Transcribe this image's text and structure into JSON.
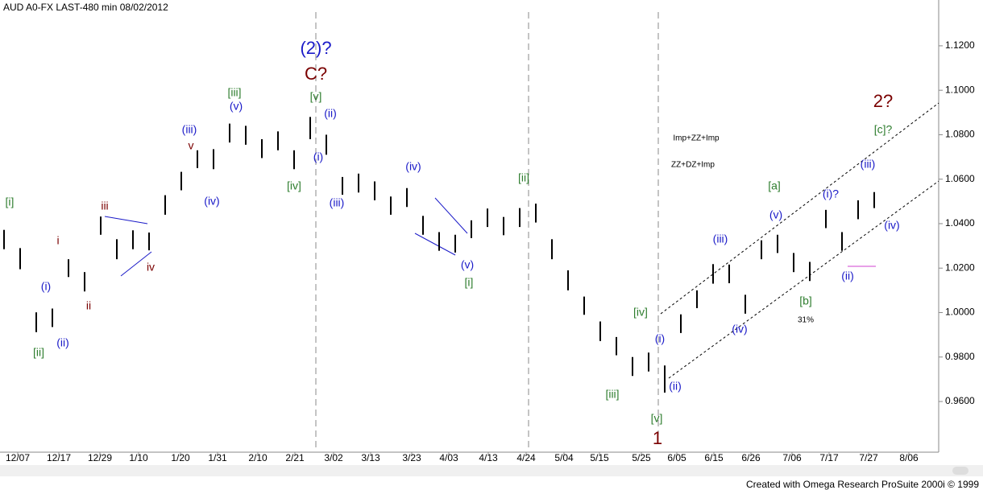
{
  "chart_data": {
    "type": "ohlc",
    "title": "AUD A0-FX LAST-480 min   08/02/2012",
    "footer": "Created with Omega Research ProSuite 2000i © 1999",
    "color": "#000000",
    "high": [
      1.0372,
      1.029,
      1.0001,
      1.0018,
      1.024,
      1.0182,
      1.0432,
      1.033,
      1.037,
      1.036,
      1.0528,
      1.0633,
      1.073,
      1.0735,
      1.085,
      1.084,
      1.078,
      1.0815,
      1.073,
      1.088,
      1.08,
      1.061,
      1.0625,
      1.059,
      1.0522,
      1.056,
      1.0435,
      1.0362,
      1.035,
      1.0415,
      1.0468,
      1.043,
      1.047,
      1.049,
      1.033,
      1.019,
      1.0072,
      0.996,
      0.989,
      0.98,
      0.982,
      0.9762,
      0.9992,
      1.01,
      1.0218,
      1.0216,
      1.008,
      1.0325,
      1.035,
      1.0268,
      1.0228,
      1.0462,
      1.0362,
      1.0505,
      1.0542
    ],
    "low": [
      1.0285,
      1.0195,
      0.9912,
      0.9935,
      1.016,
      1.0095,
      1.035,
      1.024,
      1.0285,
      1.028,
      1.044,
      1.055,
      1.065,
      1.0645,
      1.0765,
      1.0755,
      1.0695,
      1.073,
      1.0645,
      1.078,
      1.071,
      1.053,
      1.054,
      1.0505,
      1.044,
      1.0475,
      1.035,
      1.0278,
      1.027,
      1.0335,
      1.0385,
      1.0348,
      1.0385,
      1.0405,
      1.024,
      1.01,
      0.999,
      0.9872,
      0.9808,
      0.9715,
      0.9735,
      0.964,
      0.9908,
      1.002,
      1.013,
      1.0132,
      0.9995,
      1.024,
      1.0268,
      1.0182,
      1.0142,
      1.038,
      1.0278,
      1.042,
      1.047
    ],
    "xlim": [
      -0.25,
      58
    ],
    "xticks": [
      {
        "value": 0.85,
        "label": "12/07"
      },
      {
        "value": 3.4,
        "label": "12/17"
      },
      {
        "value": 5.95,
        "label": "12/29"
      },
      {
        "value": 8.35,
        "label": "1/10"
      },
      {
        "value": 10.95,
        "label": "1/20"
      },
      {
        "value": 13.25,
        "label": "1/31"
      },
      {
        "value": 15.75,
        "label": "2/10"
      },
      {
        "value": 18.05,
        "label": "2/21"
      },
      {
        "value": 20.45,
        "label": "3/02"
      },
      {
        "value": 22.75,
        "label": "3/13"
      },
      {
        "value": 25.3,
        "label": "3/23"
      },
      {
        "value": 27.6,
        "label": "4/03"
      },
      {
        "value": 30.05,
        "label": "4/13"
      },
      {
        "value": 32.4,
        "label": "4/24"
      },
      {
        "value": 34.75,
        "label": "5/04"
      },
      {
        "value": 36.95,
        "label": "5/15"
      },
      {
        "value": 39.55,
        "label": "5/25"
      },
      {
        "value": 41.75,
        "label": "6/05"
      },
      {
        "value": 44.05,
        "label": "6/15"
      },
      {
        "value": 46.35,
        "label": "6/26"
      },
      {
        "value": 48.9,
        "label": "7/06"
      },
      {
        "value": 51.2,
        "label": "7/17"
      },
      {
        "value": 53.65,
        "label": "7/27"
      },
      {
        "value": 56.15,
        "label": "8/06"
      }
    ],
    "ylim": [
      0.9372,
      1.1406
    ],
    "yticks": [
      {
        "value": 0.96,
        "label": "0.9600"
      },
      {
        "value": 0.98,
        "label": "0.9800"
      },
      {
        "value": 1.0,
        "label": "1.0000"
      },
      {
        "value": 1.02,
        "label": "1.0200"
      },
      {
        "value": 1.04,
        "label": "1.0400"
      },
      {
        "value": 1.06,
        "label": "1.0600"
      },
      {
        "value": 1.08,
        "label": "1.0800"
      },
      {
        "value": 1.1,
        "label": "1.1000"
      },
      {
        "value": 1.12,
        "label": "1.1200"
      }
    ],
    "annotations": [
      "[i]",
      "i",
      "(i)",
      "ii",
      "[ii]",
      "(ii)",
      "iii",
      "iv",
      "(iii)",
      "v",
      "(iv)",
      "[iii]",
      "(v)",
      "[iv]",
      "[v]",
      "C?",
      "(2)?",
      "(ii)",
      "(i)",
      "(iii)",
      "(iv)",
      "(v)",
      "[i]",
      "[ii]",
      "[iii]",
      "[iv]",
      "(i)",
      "(ii)",
      "[v]",
      "1",
      "(iii)",
      "(iv)",
      "[a]",
      "(v)",
      "[b]",
      "31%",
      "(i)?",
      "(ii)",
      "(iii)",
      "(iv)",
      "[c]?",
      "2?",
      "Imp+ZZ+Imp",
      "ZZ+DZ+Imp"
    ]
  }
}
